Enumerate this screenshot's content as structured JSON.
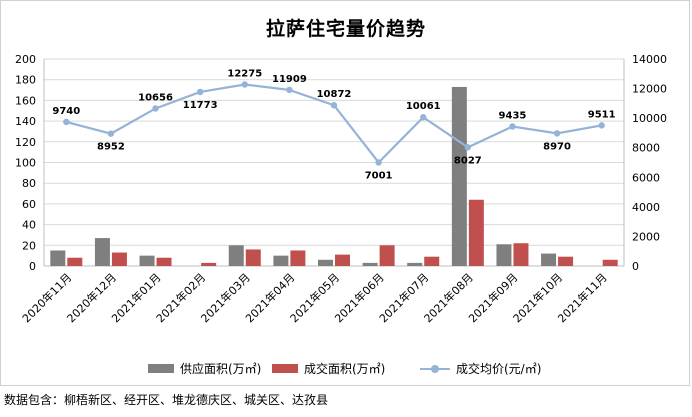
{
  "title": "拉萨住宅量价趋势",
  "footnote": "数据包含：柳梧新区、经开区、堆龙德庆区、城关区、达孜县",
  "colors": {
    "supply": "#7f7f7f",
    "deal_area": "#c0504d",
    "deal_price": "#95b3d7",
    "grid": "#d9d9d9"
  },
  "legend": {
    "supply": "供应面积(万㎡)",
    "deal_area": "成交面积(万㎡)",
    "deal_price": "成交均价(元/㎡)"
  },
  "chart_data": {
    "type": "bar",
    "categories": [
      "2020年11月",
      "2020年12月",
      "2021年01月",
      "2021年02月",
      "2021年03月",
      "2021年04月",
      "2021年05月",
      "2021年06月",
      "2021年07月",
      "2021年08月",
      "2021年09月",
      "2021年10月",
      "2021年11月"
    ],
    "series": [
      {
        "name": "供应面积(万㎡)",
        "type": "bar",
        "axis": "left",
        "values": [
          15,
          27,
          10,
          0,
          20,
          10,
          6,
          3,
          3,
          173,
          21,
          12,
          0
        ]
      },
      {
        "name": "成交面积(万㎡)",
        "type": "bar",
        "axis": "left",
        "values": [
          8,
          13,
          8,
          3,
          16,
          15,
          11,
          20,
          9,
          64,
          22,
          9,
          6
        ]
      },
      {
        "name": "成交均价(元/㎡)",
        "type": "line",
        "axis": "right",
        "values": [
          9740,
          8952,
          10656,
          11773,
          12275,
          11909,
          10872,
          7001,
          10061,
          8027,
          9435,
          8970,
          9511
        ]
      }
    ],
    "y_left": {
      "min": 0,
      "max": 200,
      "ticks": [
        0,
        20,
        40,
        60,
        80,
        100,
        120,
        140,
        160,
        180,
        200
      ]
    },
    "y_right": {
      "min": 0,
      "max": 14000,
      "ticks": [
        0,
        2000,
        4000,
        6000,
        8000,
        10000,
        12000,
        14000
      ]
    },
    "grid": true,
    "legend_position": "bottom"
  }
}
